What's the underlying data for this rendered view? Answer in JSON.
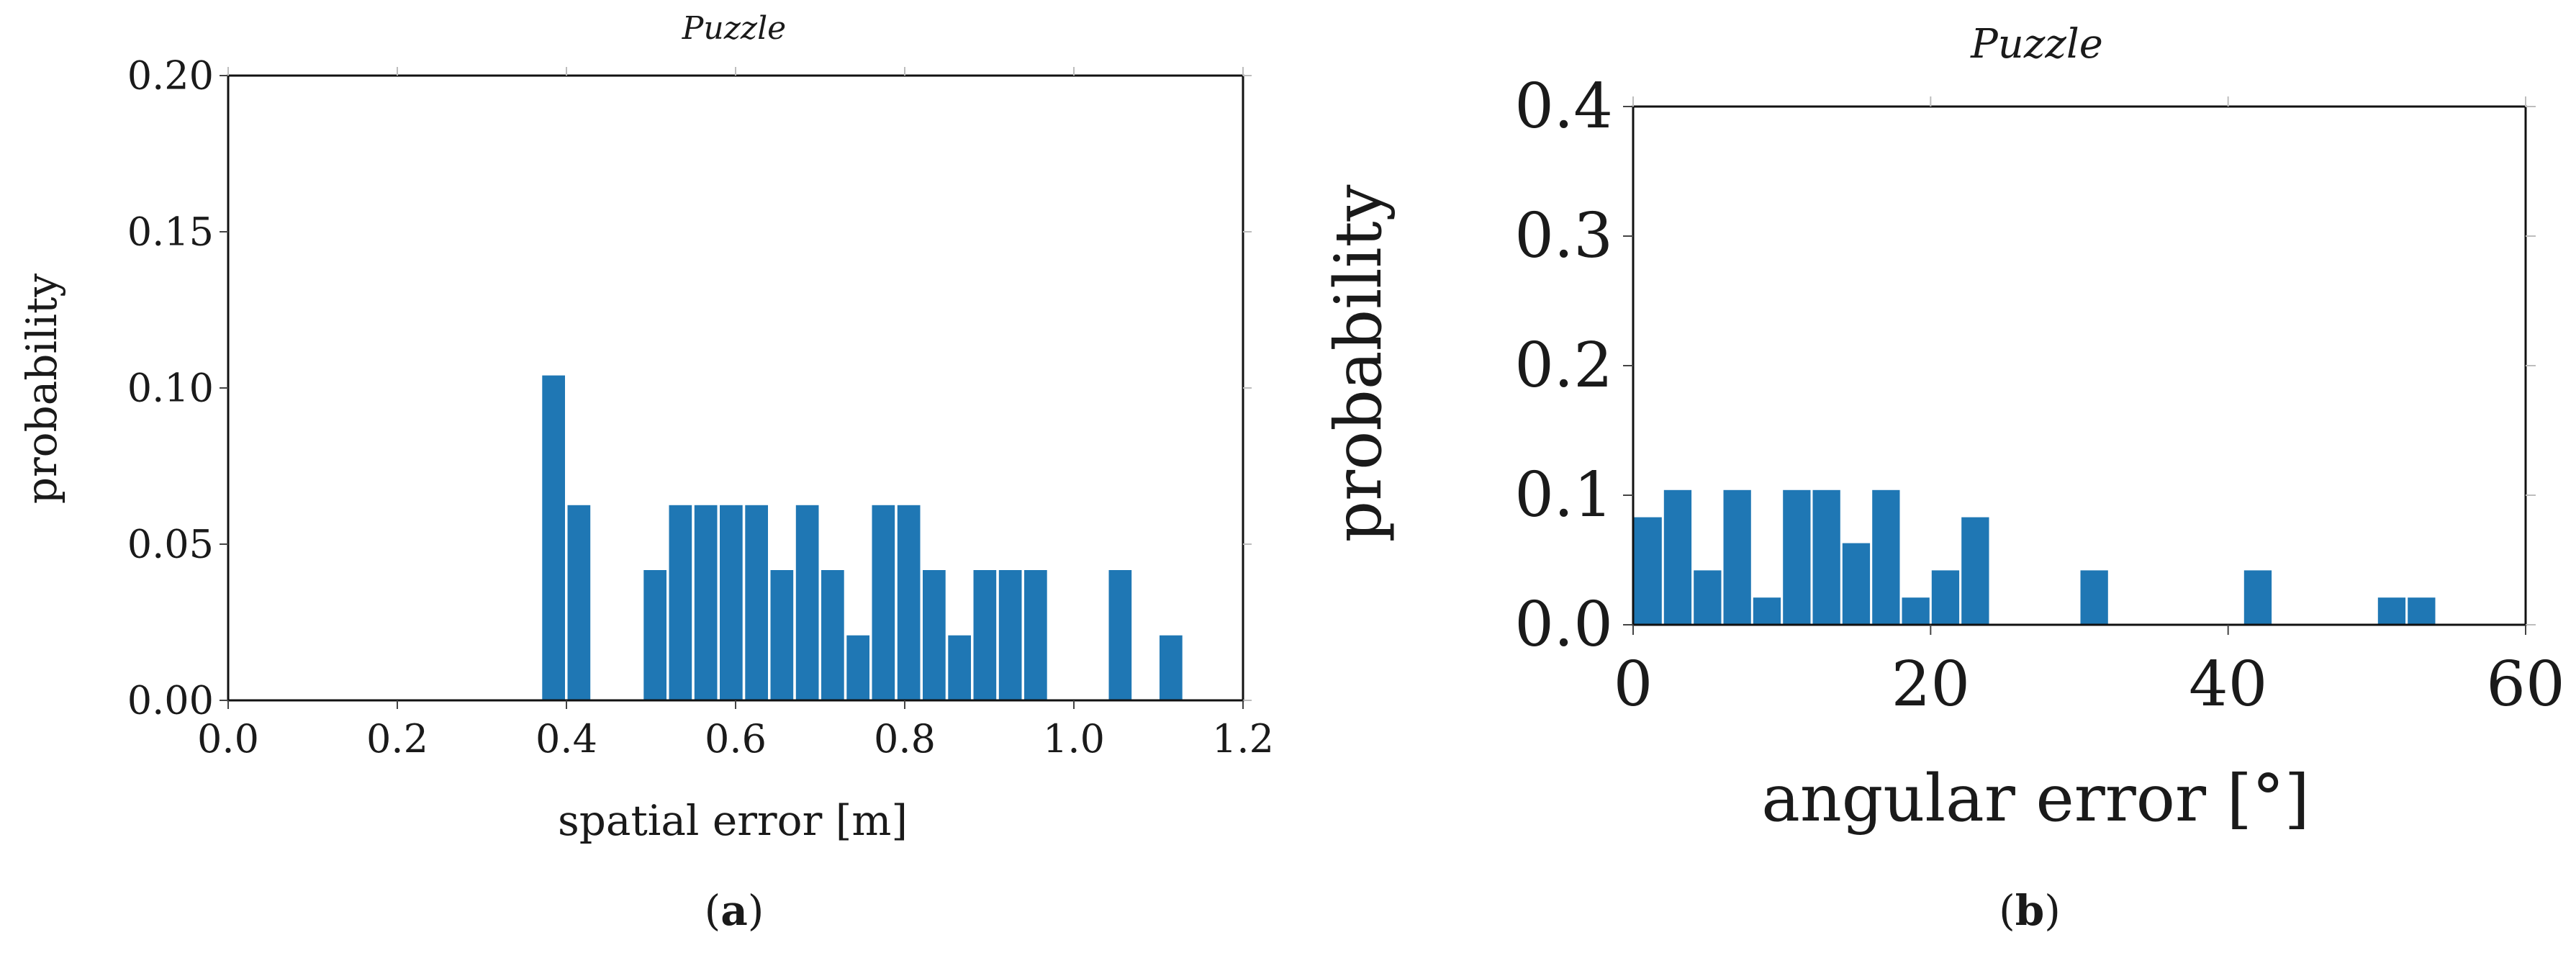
{
  "colors": {
    "bar": "#1f77b4",
    "axis": "#111111"
  },
  "chart_data": [
    {
      "type": "bar",
      "panel_label": "a",
      "title": "Puzzle",
      "xlabel": "spatial error [m]",
      "ylabel": "probability",
      "xlim": [
        0.0,
        1.2
      ],
      "ylim": [
        0.0,
        0.2
      ],
      "xticks": [
        "0.0",
        "0.2",
        "0.4",
        "0.6",
        "0.8",
        "1.0",
        "1.2"
      ],
      "yticks": [
        "0.00",
        "0.05",
        "0.10",
        "0.15",
        "0.20"
      ],
      "bin_width": 0.0295,
      "bins": [
        {
          "x": 0.37,
          "value": 0.104
        },
        {
          "x": 0.4,
          "value": 0.0625
        },
        {
          "x": 0.49,
          "value": 0.0417
        },
        {
          "x": 0.52,
          "value": 0.0625
        },
        {
          "x": 0.55,
          "value": 0.0625
        },
        {
          "x": 0.58,
          "value": 0.0625
        },
        {
          "x": 0.61,
          "value": 0.0625
        },
        {
          "x": 0.64,
          "value": 0.0417
        },
        {
          "x": 0.67,
          "value": 0.0625
        },
        {
          "x": 0.7,
          "value": 0.0417
        },
        {
          "x": 0.73,
          "value": 0.0208
        },
        {
          "x": 0.76,
          "value": 0.0625
        },
        {
          "x": 0.79,
          "value": 0.0625
        },
        {
          "x": 0.82,
          "value": 0.0417
        },
        {
          "x": 0.85,
          "value": 0.0208
        },
        {
          "x": 0.88,
          "value": 0.0417
        },
        {
          "x": 0.91,
          "value": 0.0417
        },
        {
          "x": 0.94,
          "value": 0.0417
        },
        {
          "x": 1.04,
          "value": 0.0417
        },
        {
          "x": 1.1,
          "value": 0.0208
        }
      ]
    },
    {
      "type": "bar",
      "panel_label": "b",
      "title": "Puzzle",
      "xlabel": "angular error [°]",
      "ylabel": "probability",
      "xlim": [
        0,
        60
      ],
      "ylim": [
        0.0,
        0.4
      ],
      "xticks": [
        "0",
        "20",
        "40",
        "60"
      ],
      "yticks": [
        "0.0",
        "0.1",
        "0.2",
        "0.3",
        "0.4"
      ],
      "bin_width": 2.0,
      "bins": [
        {
          "x": 0,
          "value": 0.083
        },
        {
          "x": 2,
          "value": 0.104
        },
        {
          "x": 4,
          "value": 0.042
        },
        {
          "x": 6,
          "value": 0.104
        },
        {
          "x": 8,
          "value": 0.021
        },
        {
          "x": 10,
          "value": 0.104
        },
        {
          "x": 12,
          "value": 0.104
        },
        {
          "x": 14,
          "value": 0.063
        },
        {
          "x": 16,
          "value": 0.104
        },
        {
          "x": 18,
          "value": 0.021
        },
        {
          "x": 20,
          "value": 0.042
        },
        {
          "x": 22,
          "value": 0.083
        },
        {
          "x": 30,
          "value": 0.042
        },
        {
          "x": 41,
          "value": 0.042
        },
        {
          "x": 50,
          "value": 0.021
        },
        {
          "x": 52,
          "value": 0.021
        }
      ]
    }
  ]
}
